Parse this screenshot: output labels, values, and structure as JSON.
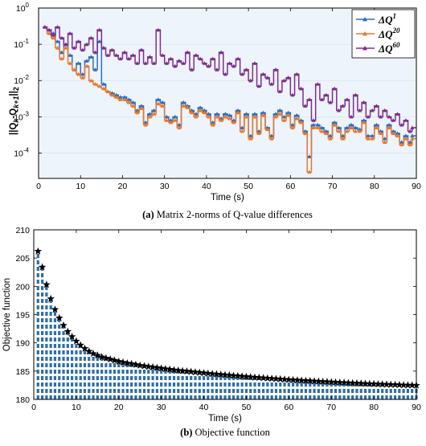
{
  "chart_data": [
    {
      "type": "line",
      "panel": "a",
      "caption_label": "(a)",
      "caption_text": "Matrix 2-norms of Q-value differences",
      "xlabel": "Time (s)",
      "ylabel": "||Q_k - Q_k+1||_2",
      "ylabel_parts": {
        "main1": "||Q",
        "sub1": "k",
        "mid": "-Q",
        "sub2": "k+1",
        "end": "||",
        "sub3": "2"
      },
      "xlim": [
        0,
        90
      ],
      "ylim": [
        2e-05,
        1
      ],
      "yscale": "log",
      "step": true,
      "background": "#eef4fb",
      "xticks": [
        0,
        10,
        20,
        30,
        40,
        50,
        60,
        70,
        80,
        90
      ],
      "yticks": [
        {
          "value": 0.0001,
          "base": "10",
          "exp": "-4"
        },
        {
          "value": 0.001,
          "base": "10",
          "exp": "-3"
        },
        {
          "value": 0.01,
          "base": "10",
          "exp": "-2"
        },
        {
          "value": 0.1,
          "base": "10",
          "exp": "-1"
        },
        {
          "value": 1,
          "base": "10",
          "exp": "0"
        }
      ],
      "legend_position": "top-right",
      "series": [
        {
          "name": "ΔQ1",
          "label_base": "ΔQ",
          "label_exp": "1",
          "color": "#2e6fc0",
          "marker": "triangle",
          "x": [
            1,
            2,
            3,
            4,
            5,
            6,
            7,
            8,
            9,
            10,
            11,
            12,
            13,
            14,
            15,
            16,
            17,
            18,
            19,
            20,
            21,
            22,
            23,
            24,
            25,
            26,
            27,
            28,
            29,
            30,
            31,
            32,
            33,
            34,
            35,
            36,
            37,
            38,
            39,
            40,
            41,
            42,
            43,
            44,
            45,
            46,
            47,
            48,
            49,
            50,
            51,
            52,
            53,
            54,
            55,
            56,
            57,
            58,
            59,
            60,
            61,
            62,
            63,
            64,
            65,
            66,
            67,
            68,
            69,
            70,
            71,
            72,
            73,
            74,
            75,
            76,
            77,
            78,
            79,
            80,
            81,
            82,
            83,
            84,
            85,
            86,
            87,
            88,
            89
          ],
          "y": [
            0.3,
            0.25,
            0.2,
            0.12,
            0.06,
            0.1,
            0.05,
            0.02,
            0.03,
            0.015,
            0.035,
            0.045,
            0.02,
            0.12,
            0.008,
            0.005,
            0.0045,
            0.004,
            0.0035,
            0.0035,
            0.003,
            0.0025,
            0.0015,
            0.002,
            0.0007,
            0.0012,
            0.0015,
            0.003,
            0.0025,
            0.001,
            0.0008,
            0.001,
            0.0006,
            0.0025,
            0.002,
            0.0015,
            0.0012,
            0.0018,
            0.0015,
            0.0012,
            0.0007,
            0.0012,
            0.0009,
            0.0012,
            0.0011,
            0.0008,
            0.0015,
            0.0005,
            0.0012,
            0.0003,
            0.0012,
            0.0004,
            0.0013,
            0.0005,
            0.0003,
            0.0012,
            0.0015,
            0.001,
            0.0013,
            0.0006,
            0.0011,
            0.0008,
            0.0004,
            8e-05,
            0.0006,
            0.0006,
            0.0005,
            0.0004,
            0.0003,
            0.0007,
            0.0005,
            0.0003,
            0.0005,
            0.0006,
            0.0005,
            0.00045,
            0.0008,
            0.0003,
            0.0003,
            0.0006,
            0.0004,
            0.00025,
            0.0006,
            0.0004,
            0.00035,
            0.0002,
            0.0003,
            0.0002,
            0.0003
          ]
        },
        {
          "name": "ΔQ20",
          "label_base": "ΔQ",
          "label_exp": "20",
          "color": "#e8792f",
          "marker": "triangle",
          "x": [
            1,
            2,
            3,
            4,
            5,
            6,
            7,
            8,
            9,
            10,
            11,
            12,
            13,
            14,
            15,
            16,
            17,
            18,
            19,
            20,
            21,
            22,
            23,
            24,
            25,
            26,
            27,
            28,
            29,
            30,
            31,
            32,
            33,
            34,
            35,
            36,
            37,
            38,
            39,
            40,
            41,
            42,
            43,
            44,
            45,
            46,
            47,
            48,
            49,
            50,
            51,
            52,
            53,
            54,
            55,
            56,
            57,
            58,
            59,
            60,
            61,
            62,
            63,
            64,
            65,
            66,
            67,
            68,
            69,
            70,
            71,
            72,
            73,
            74,
            75,
            76,
            77,
            78,
            79,
            80,
            81,
            82,
            83,
            84,
            85,
            86,
            87,
            88,
            89
          ],
          "y": [
            0.3,
            0.2,
            0.15,
            0.08,
            0.04,
            0.08,
            0.03,
            0.02,
            0.015,
            0.012,
            0.025,
            0.01,
            0.008,
            0.007,
            0.006,
            0.005,
            0.004,
            0.0035,
            0.003,
            0.003,
            0.0025,
            0.002,
            0.0013,
            0.0017,
            0.0006,
            0.001,
            0.0012,
            0.0023,
            0.002,
            0.0008,
            0.0007,
            0.0008,
            0.0005,
            0.002,
            0.0018,
            0.0013,
            0.001,
            0.0015,
            0.0013,
            0.001,
            0.0006,
            0.001,
            0.0008,
            0.001,
            0.0009,
            0.0007,
            0.0013,
            0.0004,
            0.001,
            0.00025,
            0.001,
            0.00035,
            0.0011,
            0.00045,
            0.00025,
            0.001,
            0.0012,
            0.0008,
            0.0011,
            0.0005,
            0.0009,
            0.0007,
            0.00035,
            3e-05,
            0.0005,
            0.0005,
            0.0004,
            0.00035,
            0.00025,
            0.0006,
            0.0004,
            0.00025,
            0.0004,
            0.0005,
            0.0004,
            0.0004,
            0.0007,
            0.00025,
            0.00025,
            0.0005,
            0.00035,
            0.0002,
            0.0005,
            0.00035,
            0.0003,
            0.00017,
            0.00025,
            0.00017,
            0.00025
          ]
        },
        {
          "name": "ΔQ60",
          "label_base": "ΔQ",
          "label_exp": "60",
          "color": "#7e2f8e",
          "marker": "triangle",
          "x": [
            1,
            2,
            3,
            4,
            5,
            6,
            7,
            8,
            9,
            10,
            11,
            12,
            13,
            14,
            15,
            16,
            17,
            18,
            19,
            20,
            21,
            22,
            23,
            24,
            25,
            26,
            27,
            28,
            29,
            30,
            31,
            32,
            33,
            34,
            35,
            36,
            37,
            38,
            39,
            40,
            41,
            42,
            43,
            44,
            45,
            46,
            47,
            48,
            49,
            50,
            51,
            52,
            53,
            54,
            55,
            56,
            57,
            58,
            59,
            60,
            61,
            62,
            63,
            64,
            65,
            66,
            67,
            68,
            69,
            70,
            71,
            72,
            73,
            74,
            75,
            76,
            77,
            78,
            79,
            80,
            81,
            82,
            83,
            84,
            85,
            86,
            87,
            88,
            89
          ],
          "y": [
            0.3,
            0.25,
            0.18,
            0.3,
            0.15,
            0.1,
            0.2,
            0.08,
            0.12,
            0.07,
            0.1,
            0.15,
            0.06,
            0.25,
            0.08,
            0.05,
            0.07,
            0.05,
            0.04,
            0.06,
            0.04,
            0.05,
            0.03,
            0.07,
            0.03,
            0.045,
            0.03,
            0.25,
            0.05,
            0.03,
            0.04,
            0.025,
            0.035,
            0.03,
            0.06,
            0.02,
            0.05,
            0.04,
            0.03,
            0.025,
            0.04,
            0.02,
            0.06,
            0.015,
            0.03,
            0.025,
            0.04,
            0.015,
            0.02,
            0.01,
            0.03,
            0.007,
            0.015,
            0.012,
            0.008,
            0.02,
            0.005,
            0.01,
            0.012,
            0.004,
            0.015,
            0.006,
            0.002,
            0.003,
            0.0008,
            0.008,
            0.003,
            0.004,
            0.0025,
            0.006,
            0.0015,
            0.002,
            0.003,
            0.001,
            0.004,
            0.0015,
            0.0025,
            0.001,
            0.0015,
            0.002,
            0.001,
            0.0015,
            0.001,
            0.0008,
            0.0012,
            0.0006,
            0.0008,
            0.0004,
            0.0005
          ]
        }
      ]
    },
    {
      "type": "bar",
      "panel": "b",
      "caption_label": "(b)",
      "caption_text": "Objective function",
      "xlabel": "Time (s)",
      "ylabel": "Objective function",
      "xlim": [
        0,
        90
      ],
      "ylim": [
        180,
        210
      ],
      "xticks": [
        0,
        10,
        20,
        30,
        40,
        50,
        60,
        70,
        80,
        90
      ],
      "yticks": [
        180,
        185,
        190,
        195,
        200,
        205,
        210
      ],
      "bar_style": "dashed stem",
      "bar_color": "#2e6fa6",
      "marker": "star",
      "marker_color": "#000000",
      "x": [
        1,
        2,
        3,
        4,
        5,
        6,
        7,
        8,
        9,
        10,
        11,
        12,
        13,
        14,
        15,
        16,
        17,
        18,
        19,
        20,
        21,
        22,
        23,
        24,
        25,
        26,
        27,
        28,
        29,
        30,
        31,
        32,
        33,
        34,
        35,
        36,
        37,
        38,
        39,
        40,
        41,
        42,
        43,
        44,
        45,
        46,
        47,
        48,
        49,
        50,
        51,
        52,
        53,
        54,
        55,
        56,
        57,
        58,
        59,
        60,
        61,
        62,
        63,
        64,
        65,
        66,
        67,
        68,
        69,
        70,
        71,
        72,
        73,
        74,
        75,
        76,
        77,
        78,
        79,
        80,
        81,
        82,
        83,
        84,
        85,
        86,
        87,
        88,
        89,
        90
      ],
      "values": [
        206.2,
        203.4,
        200.3,
        197.8,
        195.9,
        194.4,
        193.1,
        192.0,
        191.1,
        190.3,
        189.6,
        189.0,
        188.5,
        188.1,
        187.8,
        187.5,
        187.3,
        187.1,
        186.9,
        186.7,
        186.55,
        186.4,
        186.3,
        186.15,
        186.0,
        185.9,
        185.8,
        185.7,
        185.6,
        185.5,
        185.4,
        185.3,
        185.2,
        185.12,
        185.05,
        184.98,
        184.9,
        184.82,
        184.75,
        184.68,
        184.6,
        184.53,
        184.46,
        184.4,
        184.33,
        184.27,
        184.2,
        184.14,
        184.08,
        184.02,
        183.96,
        183.9,
        183.85,
        183.8,
        183.74,
        183.69,
        183.64,
        183.59,
        183.54,
        183.49,
        183.44,
        183.4,
        183.35,
        183.31,
        183.27,
        183.23,
        183.19,
        183.15,
        183.11,
        183.07,
        183.03,
        183.0,
        182.96,
        182.93,
        182.89,
        182.86,
        182.83,
        182.8,
        182.77,
        182.74,
        182.71,
        182.68,
        182.65,
        182.62,
        182.6,
        182.57,
        182.54,
        182.52,
        182.5,
        182.48
      ]
    }
  ]
}
